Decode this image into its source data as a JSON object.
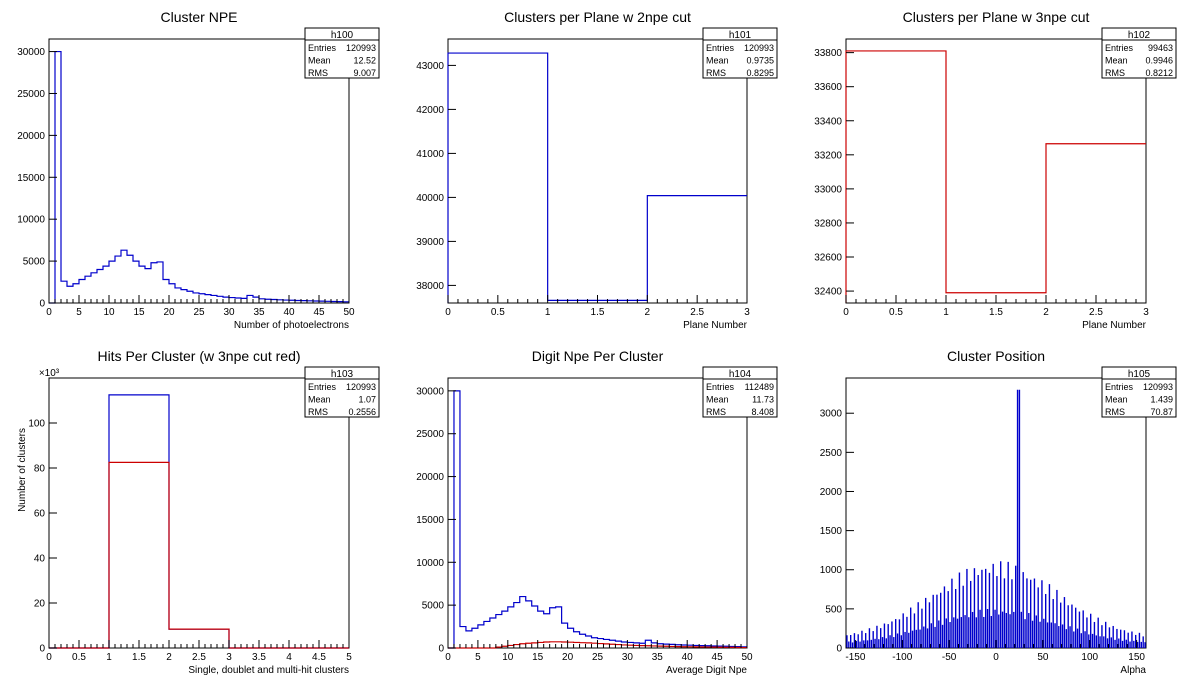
{
  "chart_data": [
    {
      "type": "histogram",
      "title": "Cluster NPE",
      "xlabel": "Number of photoelectrons",
      "ylabel": "",
      "xlim": [
        0,
        50
      ],
      "ylim": [
        0,
        31500
      ],
      "xticks": [
        0,
        5,
        10,
        15,
        20,
        25,
        30,
        35,
        40,
        45,
        50
      ],
      "yticks": [
        0,
        5000,
        10000,
        15000,
        20000,
        25000,
        30000
      ],
      "ymult": "",
      "stats": {
        "name": "h100",
        "rows": [
          [
            "Entries",
            "120993"
          ],
          [
            "Mean",
            "12.52"
          ],
          [
            "RMS",
            "9.007"
          ]
        ]
      },
      "series": [
        {
          "color": "#0000cc",
          "edges": [
            0,
            1,
            2,
            3,
            4,
            5,
            6,
            7,
            8,
            9,
            10,
            11,
            12,
            13,
            14,
            15,
            16,
            17,
            18,
            19,
            20,
            21,
            22,
            23,
            24,
            25,
            26,
            27,
            28,
            29,
            30,
            31,
            32,
            33,
            34,
            35,
            36,
            37,
            38,
            39,
            40,
            41,
            42,
            43,
            44,
            45,
            46,
            47,
            48,
            49,
            50
          ],
          "values": [
            0,
            30000,
            2600,
            2000,
            2300,
            2800,
            3200,
            3600,
            4000,
            4400,
            5000,
            5600,
            6300,
            5700,
            5000,
            4400,
            4100,
            4800,
            4900,
            2800,
            2300,
            1800,
            1600,
            1400,
            1200,
            1100,
            1000,
            900,
            800,
            700,
            650,
            600,
            550,
            900,
            700,
            500,
            450,
            420,
            380,
            350,
            330,
            300,
            280,
            260,
            240,
            220,
            200,
            180,
            160,
            140
          ]
        }
      ]
    },
    {
      "type": "histogram",
      "title": "Clusters per Plane w 2npe cut",
      "xlabel": "Plane Number",
      "ylabel": "",
      "xlim": [
        0,
        3
      ],
      "ylim": [
        37600,
        43600
      ],
      "xticks": [
        0,
        0.5,
        1,
        1.5,
        2,
        2.5,
        3
      ],
      "yticks": [
        38000,
        39000,
        40000,
        41000,
        42000,
        43000
      ],
      "ymult": "",
      "stats": {
        "name": "h101",
        "rows": [
          [
            "Entries",
            "120993"
          ],
          [
            "Mean",
            "0.9735"
          ],
          [
            "RMS",
            "0.8295"
          ]
        ]
      },
      "series": [
        {
          "color": "#0000cc",
          "edges": [
            0,
            1,
            2,
            3
          ],
          "values": [
            43280,
            37660,
            40040
          ]
        }
      ]
    },
    {
      "type": "histogram",
      "title": "Clusters per Plane w 3npe cut",
      "xlabel": "Plane Number",
      "ylabel": "",
      "xlim": [
        0,
        3
      ],
      "ylim": [
        32330,
        33880
      ],
      "xticks": [
        0,
        0.5,
        1,
        1.5,
        2,
        2.5,
        3
      ],
      "yticks": [
        32400,
        32600,
        32800,
        33000,
        33200,
        33400,
        33600,
        33800
      ],
      "ymult": "",
      "stats": {
        "name": "h102",
        "rows": [
          [
            "Entries",
            "99463"
          ],
          [
            "Mean",
            "0.9946"
          ],
          [
            "RMS",
            "0.8212"
          ]
        ]
      },
      "series": [
        {
          "color": "#cc0000",
          "edges": [
            0,
            1,
            2,
            3
          ],
          "values": [
            33810,
            32390,
            33265
          ]
        }
      ]
    },
    {
      "type": "histogram",
      "title": "Hits Per Cluster (w 3npe cut red)",
      "xlabel": "Single, doublet and multi-hit clusters",
      "ylabel": "Number of clusters",
      "xlim": [
        0,
        5
      ],
      "ylim": [
        0,
        120
      ],
      "xticks": [
        0,
        0.5,
        1,
        1.5,
        2,
        2.5,
        3,
        3.5,
        4,
        4.5,
        5
      ],
      "yticks": [
        0,
        20,
        40,
        60,
        80,
        100
      ],
      "ymult": "×10³",
      "stats": {
        "name": "h103",
        "rows": [
          [
            "Entries",
            "120993"
          ],
          [
            "Mean",
            "1.07"
          ],
          [
            "RMS",
            "0.2556"
          ]
        ]
      },
      "series": [
        {
          "color": "#0000cc",
          "edges": [
            0,
            1,
            2,
            3,
            4,
            5
          ],
          "values": [
            0,
            112.5,
            8.4,
            0,
            0
          ]
        },
        {
          "color": "#cc0000",
          "edges": [
            0,
            1,
            2,
            3,
            4,
            5
          ],
          "values": [
            0,
            82.5,
            8.4,
            0,
            0
          ]
        }
      ]
    },
    {
      "type": "histogram",
      "title": "Digit Npe Per Cluster",
      "xlabel": "Average Digit Npe",
      "ylabel": "",
      "xlim": [
        0,
        50
      ],
      "ylim": [
        0,
        31500
      ],
      "xticks": [
        0,
        5,
        10,
        15,
        20,
        25,
        30,
        35,
        40,
        45,
        50
      ],
      "yticks": [
        0,
        5000,
        10000,
        15000,
        20000,
        25000,
        30000
      ],
      "ymult": "",
      "stats": {
        "name": "h104",
        "rows": [
          [
            "Entries",
            "112489"
          ],
          [
            "Mean",
            "11.73"
          ],
          [
            "RMS",
            "8.408"
          ]
        ]
      },
      "series": [
        {
          "color": "#0000cc",
          "edges": [
            0,
            1,
            2,
            3,
            4,
            5,
            6,
            7,
            8,
            9,
            10,
            11,
            12,
            13,
            14,
            15,
            16,
            17,
            18,
            19,
            20,
            21,
            22,
            23,
            24,
            25,
            26,
            27,
            28,
            29,
            30,
            31,
            32,
            33,
            34,
            35,
            36,
            37,
            38,
            39,
            40,
            41,
            42,
            43,
            44,
            45,
            46,
            47,
            48,
            49,
            50
          ],
          "values": [
            0,
            30000,
            2500,
            2000,
            2300,
            2700,
            3100,
            3500,
            3900,
            4300,
            4800,
            5300,
            6000,
            5500,
            4900,
            4300,
            4000,
            4700,
            4800,
            2900,
            2300,
            1900,
            1600,
            1400,
            1200,
            1100,
            1000,
            900,
            800,
            700,
            650,
            600,
            550,
            900,
            600,
            500,
            450,
            420,
            380,
            350,
            330,
            300,
            280,
            260,
            240,
            220,
            200,
            180,
            160,
            140
          ]
        },
        {
          "color": "#cc0000",
          "edges": [
            0,
            1,
            2,
            3,
            4,
            5,
            6,
            7,
            8,
            9,
            10,
            11,
            12,
            13,
            14,
            15,
            16,
            17,
            18,
            19,
            20,
            21,
            22,
            23,
            24,
            25,
            26,
            27,
            28,
            29,
            30,
            31,
            32,
            33,
            34,
            35,
            36,
            37,
            38,
            39,
            40,
            41,
            42,
            43,
            44,
            45,
            46,
            47,
            48,
            49,
            50
          ],
          "values": [
            0,
            0,
            0,
            0,
            0,
            0,
            0,
            0,
            100,
            200,
            300,
            400,
            500,
            550,
            600,
            650,
            700,
            720,
            720,
            700,
            680,
            650,
            620,
            600,
            560,
            520,
            480,
            440,
            400,
            360,
            330,
            300,
            280,
            260,
            240,
            220,
            200,
            180,
            160,
            150,
            140,
            130,
            120,
            110,
            100,
            90,
            80,
            70,
            60,
            50
          ]
        }
      ]
    },
    {
      "type": "histogram",
      "title": "Cluster Position",
      "xlabel": "Alpha",
      "ylabel": "",
      "xlim": [
        -160,
        160
      ],
      "ylim": [
        0,
        3450
      ],
      "xticks": [
        -150,
        -100,
        -50,
        0,
        50,
        100,
        150
      ],
      "yticks": [
        0,
        500,
        1000,
        1500,
        2000,
        2500,
        3000
      ],
      "ymult": "",
      "stats": {
        "name": "h105",
        "rows": [
          [
            "Entries",
            "120993"
          ],
          [
            "Mean",
            "1.439"
          ],
          [
            "RMS",
            "70.87"
          ]
        ]
      },
      "series": [
        {
          "color": "#0000cc",
          "spiky": true,
          "xmin": -160,
          "binw": 2,
          "spike_at": 24,
          "spike_value": 3300
        }
      ]
    }
  ]
}
